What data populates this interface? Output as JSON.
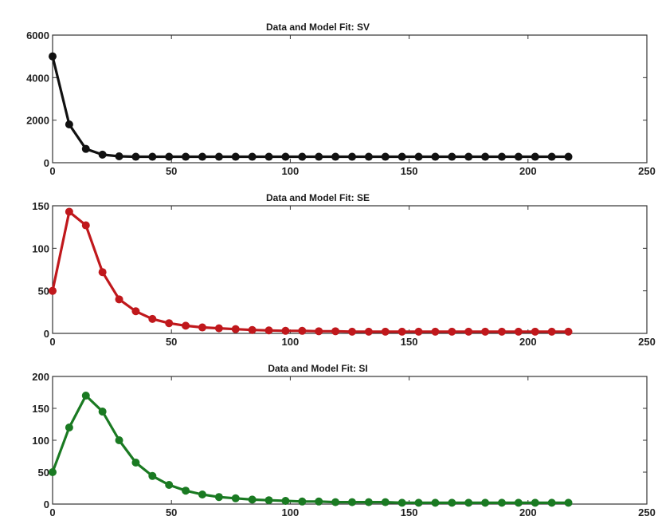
{
  "chart_data": [
    {
      "type": "line",
      "title": "Data and Model Fit: SV",
      "xlabel": "",
      "ylabel": "",
      "xlim": [
        0,
        250
      ],
      "ylim": [
        0,
        6000
      ],
      "xticks": [
        "0",
        "50",
        "100",
        "150",
        "200",
        "250"
      ],
      "yticks": [
        "0",
        "2000",
        "4000",
        "6000"
      ],
      "color": "#111111",
      "grid": false,
      "series": [
        {
          "x": [
            0,
            7,
            14,
            21,
            28,
            35,
            42,
            49,
            56,
            63,
            70,
            77,
            84,
            91,
            98,
            105,
            112,
            119,
            126,
            133,
            140,
            147,
            154,
            161,
            168,
            175,
            182,
            189,
            196,
            203,
            210,
            217
          ],
          "y": [
            5000,
            1800,
            650,
            380,
            300,
            280,
            280,
            280,
            280,
            280,
            280,
            280,
            280,
            280,
            280,
            280,
            280,
            280,
            280,
            280,
            280,
            280,
            280,
            280,
            280,
            280,
            280,
            280,
            280,
            280,
            280,
            280
          ]
        }
      ]
    },
    {
      "type": "line",
      "title": "Data and Model Fit: SE",
      "xlabel": "",
      "ylabel": "",
      "xlim": [
        0,
        250
      ],
      "ylim": [
        0,
        150
      ],
      "xticks": [
        "0",
        "50",
        "100",
        "150",
        "200",
        "250"
      ],
      "yticks": [
        "0",
        "50",
        "100",
        "150"
      ],
      "color": "#c0181c",
      "grid": false,
      "series": [
        {
          "x": [
            0,
            7,
            14,
            21,
            28,
            35,
            42,
            49,
            56,
            63,
            70,
            77,
            84,
            91,
            98,
            105,
            112,
            119,
            126,
            133,
            140,
            147,
            154,
            161,
            168,
            175,
            182,
            189,
            196,
            203,
            210,
            217
          ],
          "y": [
            50,
            143,
            127,
            72,
            40,
            26,
            17,
            12,
            9,
            7,
            6,
            5,
            4,
            3.5,
            3,
            3,
            2.5,
            2.5,
            2,
            2,
            2,
            2,
            2,
            2,
            2,
            2,
            2,
            2,
            2,
            2,
            2,
            2
          ]
        }
      ]
    },
    {
      "type": "line",
      "title": "Data and Model Fit: SI",
      "xlabel": "",
      "ylabel": "",
      "xlim": [
        0,
        250
      ],
      "ylim": [
        0,
        200
      ],
      "xticks": [
        "0",
        "50",
        "100",
        "150",
        "200",
        "250"
      ],
      "yticks": [
        "0",
        "50",
        "100",
        "150",
        "200"
      ],
      "color": "#1a7a22",
      "grid": false,
      "series": [
        {
          "x": [
            0,
            7,
            14,
            21,
            28,
            35,
            42,
            49,
            56,
            63,
            70,
            77,
            84,
            91,
            98,
            105,
            112,
            119,
            126,
            133,
            140,
            147,
            154,
            161,
            168,
            175,
            182,
            189,
            196,
            203,
            210,
            217
          ],
          "y": [
            50,
            120,
            170,
            145,
            100,
            65,
            44,
            30,
            21,
            15,
            11,
            9,
            7,
            6,
            5,
            4,
            4,
            3,
            3,
            3,
            3,
            2,
            2,
            2,
            2,
            2,
            2,
            2,
            2,
            2,
            2,
            2
          ]
        }
      ]
    }
  ]
}
